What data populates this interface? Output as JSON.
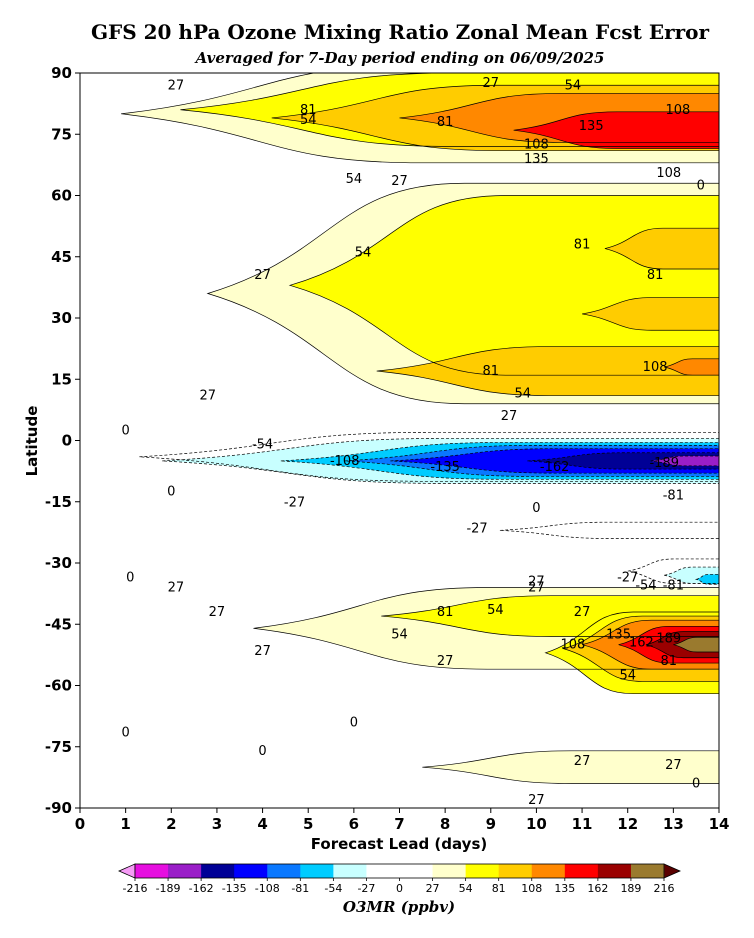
{
  "chart_data": {
    "type": "heatmap",
    "title": "GFS 20 hPa Ozone Mixing Ratio Zonal Mean Fcst Error",
    "subtitle": "Averaged for 7-Day period ending on 06/09/2025",
    "xlabel": "Forecast Lead (days)",
    "ylabel": "Latitude",
    "xlim": [
      0,
      14
    ],
    "ylim": [
      -90,
      90
    ],
    "x_ticks": [
      0,
      1,
      2,
      3,
      4,
      5,
      6,
      7,
      8,
      9,
      10,
      11,
      12,
      13,
      14
    ],
    "y_ticks": [
      90,
      75,
      60,
      45,
      30,
      15,
      0,
      -15,
      -30,
      -45,
      -60,
      -75,
      -90
    ],
    "y_tick_labels": [
      "90",
      "75",
      "60",
      "45",
      "30",
      "15",
      "0",
      "-15",
      "-30",
      "-45",
      "-60",
      "-75",
      "-90"
    ],
    "colorbar": {
      "label": "O3MR (ppbv)",
      "levels": [
        -216,
        -189,
        -162,
        -135,
        -108,
        -81,
        -54,
        -27,
        0,
        27,
        54,
        81,
        108,
        135,
        162,
        189,
        216
      ],
      "tick_labels": [
        "-216",
        "-189",
        "-162",
        "-135",
        "-108",
        "-81",
        "-54",
        "-27",
        "0",
        "27",
        "54",
        "81",
        "108",
        "135",
        "162",
        "189",
        "216"
      ],
      "colors": [
        "#e60fe0",
        "#9a1ec8",
        "#000096",
        "#0000ff",
        "#0a78ff",
        "#00ccff",
        "#c8ffff",
        "#ffffff",
        "#ffffff",
        "#ffffcc",
        "#ffff00",
        "#ffcc00",
        "#ff8800",
        "#ff0000",
        "#9a0000",
        "#9a7a2e"
      ],
      "under_color": "#f59bf5",
      "over_color": "#5a0000"
    },
    "regions": [
      {
        "lat_center": 80,
        "lat_halfwidth": 12,
        "x_start": 0.9,
        "value": 27
      },
      {
        "lat_center": 81,
        "lat_halfwidth": 9,
        "x_start": 2.2,
        "value": 54
      },
      {
        "lat_center": 79,
        "lat_halfwidth": 8,
        "x_start": 4.2,
        "value": 81
      },
      {
        "lat_center": 79,
        "lat_halfwidth": 6,
        "x_start": 7.0,
        "value": 108
      },
      {
        "lat_center": 76,
        "lat_halfwidth": 4.5,
        "x_start": 9.5,
        "value": 135
      },
      {
        "lat_center": 36,
        "lat_halfwidth": 27,
        "x_start": 2.8,
        "value": 27
      },
      {
        "lat_center": 38,
        "lat_halfwidth": 22,
        "x_start": 4.6,
        "value": 54
      },
      {
        "lat_center": 47,
        "lat_halfwidth": 5,
        "x_start": 11.5,
        "value": 81
      },
      {
        "lat_center": 31,
        "lat_halfwidth": 4,
        "x_start": 11.0,
        "value": 81
      },
      {
        "lat_center": 17,
        "lat_halfwidth": 6,
        "x_start": 6.5,
        "value": 81
      },
      {
        "lat_center": 18,
        "lat_halfwidth": 2,
        "x_start": 12.8,
        "value": 108
      },
      {
        "lat_center": -4,
        "lat_halfwidth": 6,
        "x_start": 1.3,
        "value": -27
      },
      {
        "lat_center": -5,
        "lat_halfwidth": 5.5,
        "x_start": 1.8,
        "value": -54
      },
      {
        "lat_center": -5,
        "lat_halfwidth": 4.5,
        "x_start": 4.4,
        "value": -81
      },
      {
        "lat_center": -5,
        "lat_halfwidth": 3.8,
        "x_start": 5.8,
        "value": -108
      },
      {
        "lat_center": -5,
        "lat_halfwidth": 3,
        "x_start": 6.8,
        "value": -135
      },
      {
        "lat_center": -5,
        "lat_halfwidth": 2,
        "x_start": 9.8,
        "value": -162
      },
      {
        "lat_center": -5,
        "lat_halfwidth": 1.2,
        "x_start": 12.5,
        "value": -189
      },
      {
        "lat_center": -22,
        "lat_halfwidth": 2,
        "x_start": 9.2,
        "value": -27
      },
      {
        "lat_center": -32,
        "lat_halfwidth": 3,
        "x_start": 12.0,
        "value": -27
      },
      {
        "lat_center": -33,
        "lat_halfwidth": 2,
        "x_start": 12.8,
        "value": -54
      },
      {
        "lat_center": -34,
        "lat_halfwidth": 1.2,
        "x_start": 13.5,
        "value": -81
      },
      {
        "lat_center": -46,
        "lat_halfwidth": 10,
        "x_start": 3.8,
        "value": 27
      },
      {
        "lat_center": -43,
        "lat_halfwidth": 5,
        "x_start": 6.6,
        "value": 54
      },
      {
        "lat_center": -52,
        "lat_halfwidth": 10,
        "x_start": 10.2,
        "value": 54
      },
      {
        "lat_center": -51,
        "lat_halfwidth": 8,
        "x_start": 10.6,
        "value": 81
      },
      {
        "lat_center": -50,
        "lat_halfwidth": 6,
        "x_start": 11.0,
        "value": 108
      },
      {
        "lat_center": -50,
        "lat_halfwidth": 4.5,
        "x_start": 11.8,
        "value": 135
      },
      {
        "lat_center": -50,
        "lat_halfwidth": 3.2,
        "x_start": 12.4,
        "value": 162
      },
      {
        "lat_center": -50,
        "lat_halfwidth": 1.8,
        "x_start": 13.0,
        "value": 189
      },
      {
        "lat_center": -80,
        "lat_halfwidth": 4,
        "x_start": 7.5,
        "value": 27
      }
    ],
    "contour_labels": [
      {
        "x": 2.1,
        "y": 87,
        "text": "27"
      },
      {
        "x": 9.0,
        "y": 87.5,
        "text": "27"
      },
      {
        "x": 10.8,
        "y": 87,
        "text": "54"
      },
      {
        "x": 5.0,
        "y": 81,
        "text": "81"
      },
      {
        "x": 5.0,
        "y": 78.5,
        "text": "54"
      },
      {
        "x": 8.0,
        "y": 78,
        "text": "81"
      },
      {
        "x": 11.2,
        "y": 77,
        "text": "135"
      },
      {
        "x": 10.0,
        "y": 72.5,
        "text": "108"
      },
      {
        "x": 10.0,
        "y": 69,
        "text": "135"
      },
      {
        "x": 12.9,
        "y": 65.5,
        "text": "108"
      },
      {
        "x": 13.1,
        "y": 81,
        "text": "108"
      },
      {
        "x": 6.0,
        "y": 64,
        "text": "54"
      },
      {
        "x": 7.0,
        "y": 63.5,
        "text": "27"
      },
      {
        "x": 13.6,
        "y": 62.5,
        "text": "0"
      },
      {
        "x": 6.2,
        "y": 46,
        "text": "54"
      },
      {
        "x": 11.0,
        "y": 48,
        "text": "81"
      },
      {
        "x": 12.6,
        "y": 40.5,
        "text": "81"
      },
      {
        "x": 4.0,
        "y": 40.5,
        "text": "27"
      },
      {
        "x": 9.0,
        "y": 17,
        "text": "81"
      },
      {
        "x": 12.6,
        "y": 18,
        "text": "108"
      },
      {
        "x": 9.7,
        "y": 11.5,
        "text": "54"
      },
      {
        "x": 2.8,
        "y": 11,
        "text": "27"
      },
      {
        "x": 9.4,
        "y": 6,
        "text": "27"
      },
      {
        "x": 1.0,
        "y": 2.5,
        "text": "0"
      },
      {
        "x": 4.0,
        "y": -1,
        "text": "-54"
      },
      {
        "x": 5.8,
        "y": -5,
        "text": "-108"
      },
      {
        "x": 8.0,
        "y": -6.5,
        "text": "-135"
      },
      {
        "x": 10.4,
        "y": -6.5,
        "text": "-162"
      },
      {
        "x": 12.8,
        "y": -5.5,
        "text": "-189"
      },
      {
        "x": 13.0,
        "y": -13.5,
        "text": "-81"
      },
      {
        "x": 2.0,
        "y": -12.5,
        "text": "0"
      },
      {
        "x": 4.7,
        "y": -15.2,
        "text": "-27"
      },
      {
        "x": 10.0,
        "y": -16.5,
        "text": "0"
      },
      {
        "x": 8.7,
        "y": -21.5,
        "text": "-27"
      },
      {
        "x": 1.1,
        "y": -33.5,
        "text": "0"
      },
      {
        "x": 2.1,
        "y": -36,
        "text": "27"
      },
      {
        "x": 10.0,
        "y": -34.5,
        "text": "27"
      },
      {
        "x": 10.0,
        "y": -36,
        "text": "27"
      },
      {
        "x": 12.0,
        "y": -33.5,
        "text": "-27"
      },
      {
        "x": 12.4,
        "y": -35.5,
        "text": "-54"
      },
      {
        "x": 13.0,
        "y": -35.5,
        "text": "-81"
      },
      {
        "x": 3.0,
        "y": -42,
        "text": "27"
      },
      {
        "x": 8.0,
        "y": -42,
        "text": "81"
      },
      {
        "x": 9.1,
        "y": -41.5,
        "text": "54"
      },
      {
        "x": 11.0,
        "y": -42,
        "text": "27"
      },
      {
        "x": 7.0,
        "y": -47.5,
        "text": "54"
      },
      {
        "x": 4.0,
        "y": -51.5,
        "text": "27"
      },
      {
        "x": 8.0,
        "y": -54,
        "text": "27"
      },
      {
        "x": 10.8,
        "y": -50,
        "text": "108"
      },
      {
        "x": 11.8,
        "y": -47.5,
        "text": "135"
      },
      {
        "x": 12.3,
        "y": -49.5,
        "text": "162"
      },
      {
        "x": 12.9,
        "y": -48.5,
        "text": "189"
      },
      {
        "x": 12.9,
        "y": -54,
        "text": "81"
      },
      {
        "x": 12.0,
        "y": -57.5,
        "text": "54"
      },
      {
        "x": 6.0,
        "y": -69,
        "text": "0"
      },
      {
        "x": 1.0,
        "y": -71.5,
        "text": "0"
      },
      {
        "x": 4.0,
        "y": -76,
        "text": "0"
      },
      {
        "x": 11.0,
        "y": -78.5,
        "text": "27"
      },
      {
        "x": 13.0,
        "y": -79.5,
        "text": "27"
      },
      {
        "x": 13.5,
        "y": -84,
        "text": "0"
      },
      {
        "x": 10.0,
        "y": -88,
        "text": "27"
      }
    ]
  }
}
